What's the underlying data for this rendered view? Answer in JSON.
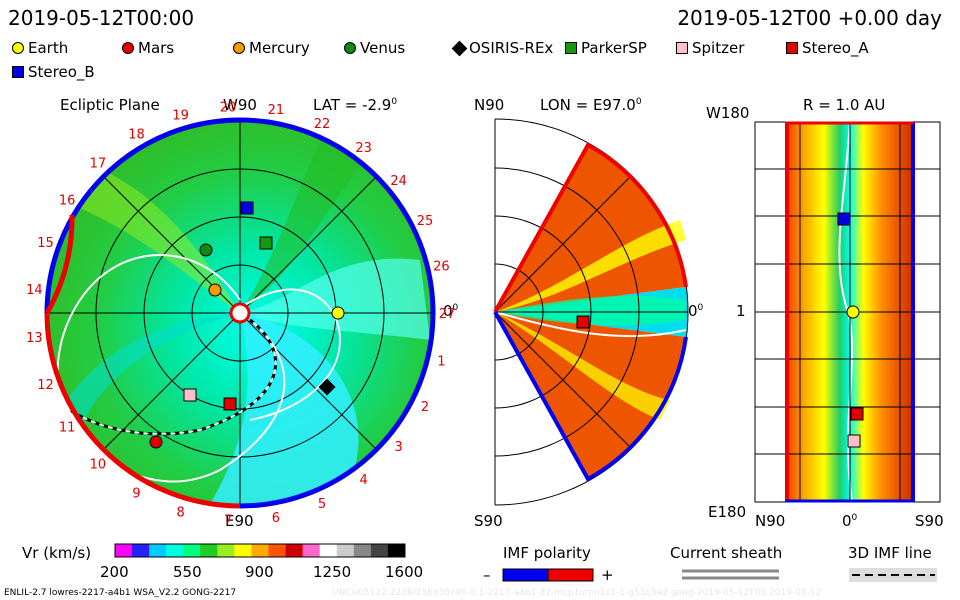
{
  "header": {
    "left_time": "2019-05-12T00:00",
    "right_time": "2019-05-12T00 +0.00 day"
  },
  "legend": [
    {
      "name": "Earth",
      "shape": "circle",
      "color": "#ffff00"
    },
    {
      "name": "Mars",
      "shape": "circle",
      "color": "#e00000"
    },
    {
      "name": "Mercury",
      "shape": "circle",
      "color": "#ff9900"
    },
    {
      "name": "Venus",
      "shape": "circle",
      "color": "#118811"
    },
    {
      "name": "OSIRIS-REx",
      "shape": "diamond",
      "color": "#000000"
    },
    {
      "name": "ParkerSP",
      "shape": "square",
      "color": "#119911"
    },
    {
      "name": "Spitzer",
      "shape": "square",
      "color": "#ffc0cb"
    },
    {
      "name": "Stereo_A",
      "shape": "square",
      "color": "#e00000"
    },
    {
      "name": "Stereo_B",
      "shape": "square",
      "color": "#0000e0"
    }
  ],
  "ecliptic": {
    "title": "Ecliptic Plane",
    "top_label": "W90",
    "lat_label": "LAT = -2.9",
    "deg_sup": "0",
    "right_label": "0",
    "bottom_label": "E90",
    "day_numbers": [
      "1",
      "2",
      "3",
      "4",
      "5",
      "6",
      "7",
      "8",
      "9",
      "10",
      "11",
      "12",
      "13",
      "14",
      "15",
      "16",
      "17",
      "18",
      "19",
      "20",
      "21",
      "22",
      "23",
      "24",
      "25",
      "26",
      "27"
    ]
  },
  "meridional": {
    "top_label": "N90",
    "lon_label": "LON = E97.0",
    "deg_sup": "0",
    "right_label": "0",
    "bottom_label": "S90"
  },
  "radial": {
    "title": "R = 1.0 AU",
    "top_label": "W180",
    "mid_label": "1",
    "bottom_label": "E180",
    "x_labels": [
      "N90",
      "0",
      "S90"
    ],
    "deg_sup": "0"
  },
  "colorbar": {
    "label": "Vr (km/s)",
    "ticks": [
      "200",
      "550",
      "900",
      "1250",
      "1600"
    ],
    "colors": [
      "#ff00ff",
      "#2222ff",
      "#00ccff",
      "#00ffdd",
      "#00ff80",
      "#22cc22",
      "#99ee22",
      "#ffff00",
      "#ffaa00",
      "#ff5500",
      "#cc0000",
      "#ff66cc",
      "#ffffff",
      "#cccccc",
      "#888888",
      "#444444",
      "#000000"
    ]
  },
  "imf": {
    "label": "IMF polarity",
    "minus": "–",
    "plus": "+",
    "neg_color": "#0000ee",
    "pos_color": "#ee0000"
  },
  "sheath": {
    "label": "Current sheath"
  },
  "imf3d": {
    "label": "3D IMF line"
  },
  "footer": {
    "left": "ENLIL-2.7 lowres-2217-a4b1 WSA_V2.2 GONG-2217",
    "right": "UNCU05122:2236/256x30x90-0:1-2217-a4b1-32-mcp1umn1c1-1-g53q5e2 gong-2019-05-12T00 2019-05-12"
  }
}
